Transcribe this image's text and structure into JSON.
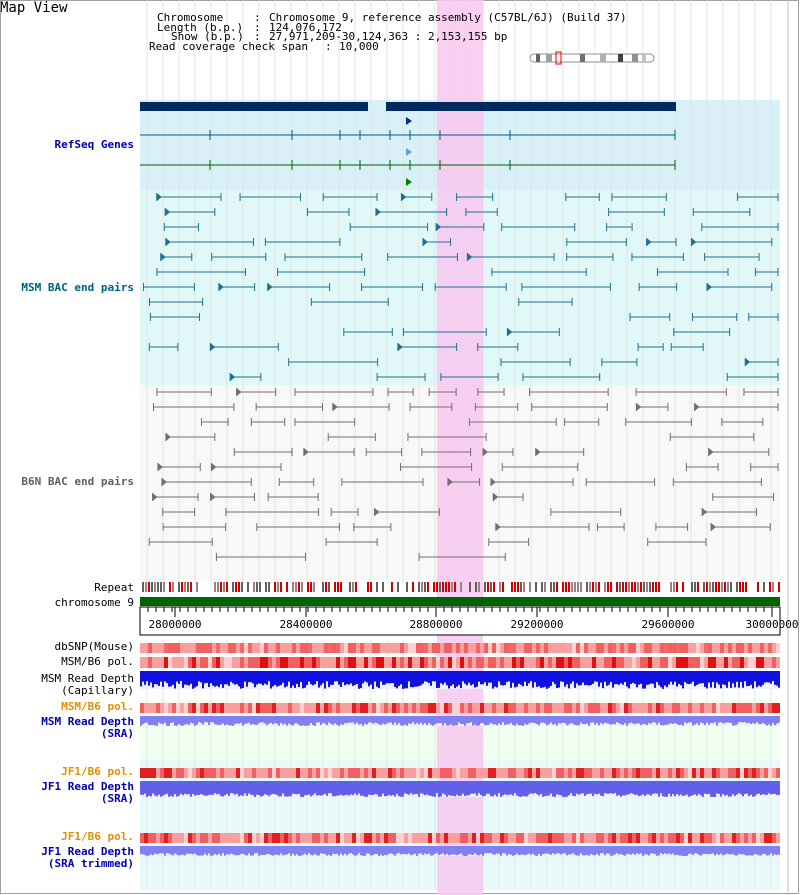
{
  "page": {
    "title": "Map View"
  },
  "info": {
    "chromosome_key": "Chromosome",
    "chromosome_val": "Chromosome 9, reference assembly (C57BL/6J) (Build 37)",
    "length_key": "Length (b.p.)",
    "length_val": "124,076,172",
    "show_key": "Show (b.p.)",
    "show_val": "27,971,209-30,124,363 : 2,153,155 bp",
    "coverage_key": "Read coverage check span",
    "coverage_val": "10,000"
  },
  "tracks": {
    "refseq": "RefSeq Genes",
    "msm_bac": "MSM BAC end pairs",
    "b6n_bac": "B6N BAC end pairs",
    "repeat": "Repeat",
    "chromosome": "chromosome 9",
    "dbsnp": "dbSNP(Mouse)",
    "msm_b6_pol": "MSM/B6 pol.",
    "msm_depth_cap": "MSM Read Depth\n(Capillary)",
    "msm_b6_pol_sra": "MSM/B6 pol.",
    "msm_depth_sra": "MSM Read Depth\n(SRA)",
    "jf1_b6_pol_sra": "JF1/B6 pol.",
    "jf1_depth_sra": "JF1 Read Depth\n(SRA)",
    "jf1_b6_pol_trim": "JF1/B6 pol.",
    "jf1_depth_trim": "JF1 Read Depth\n(SRA trimmed)"
  },
  "axis": {
    "ticks": [
      "28000000",
      "28400000",
      "28800000",
      "29200000",
      "29600000",
      "30000000"
    ]
  },
  "colors": {
    "refseq_bg": "#d8f0f8",
    "msm_bg": "#e0f8f8",
    "b6n_bg": "#f8f8f8",
    "highlight": "#f8c8f0",
    "label_blue": "#0000b0",
    "label_teal": "#006080",
    "label_orange": "#e09000",
    "chromosome_green": "#006400",
    "depth_blue": "#1010e0",
    "depth_light": "#8080f0",
    "pol_red": "#f03030"
  }
}
